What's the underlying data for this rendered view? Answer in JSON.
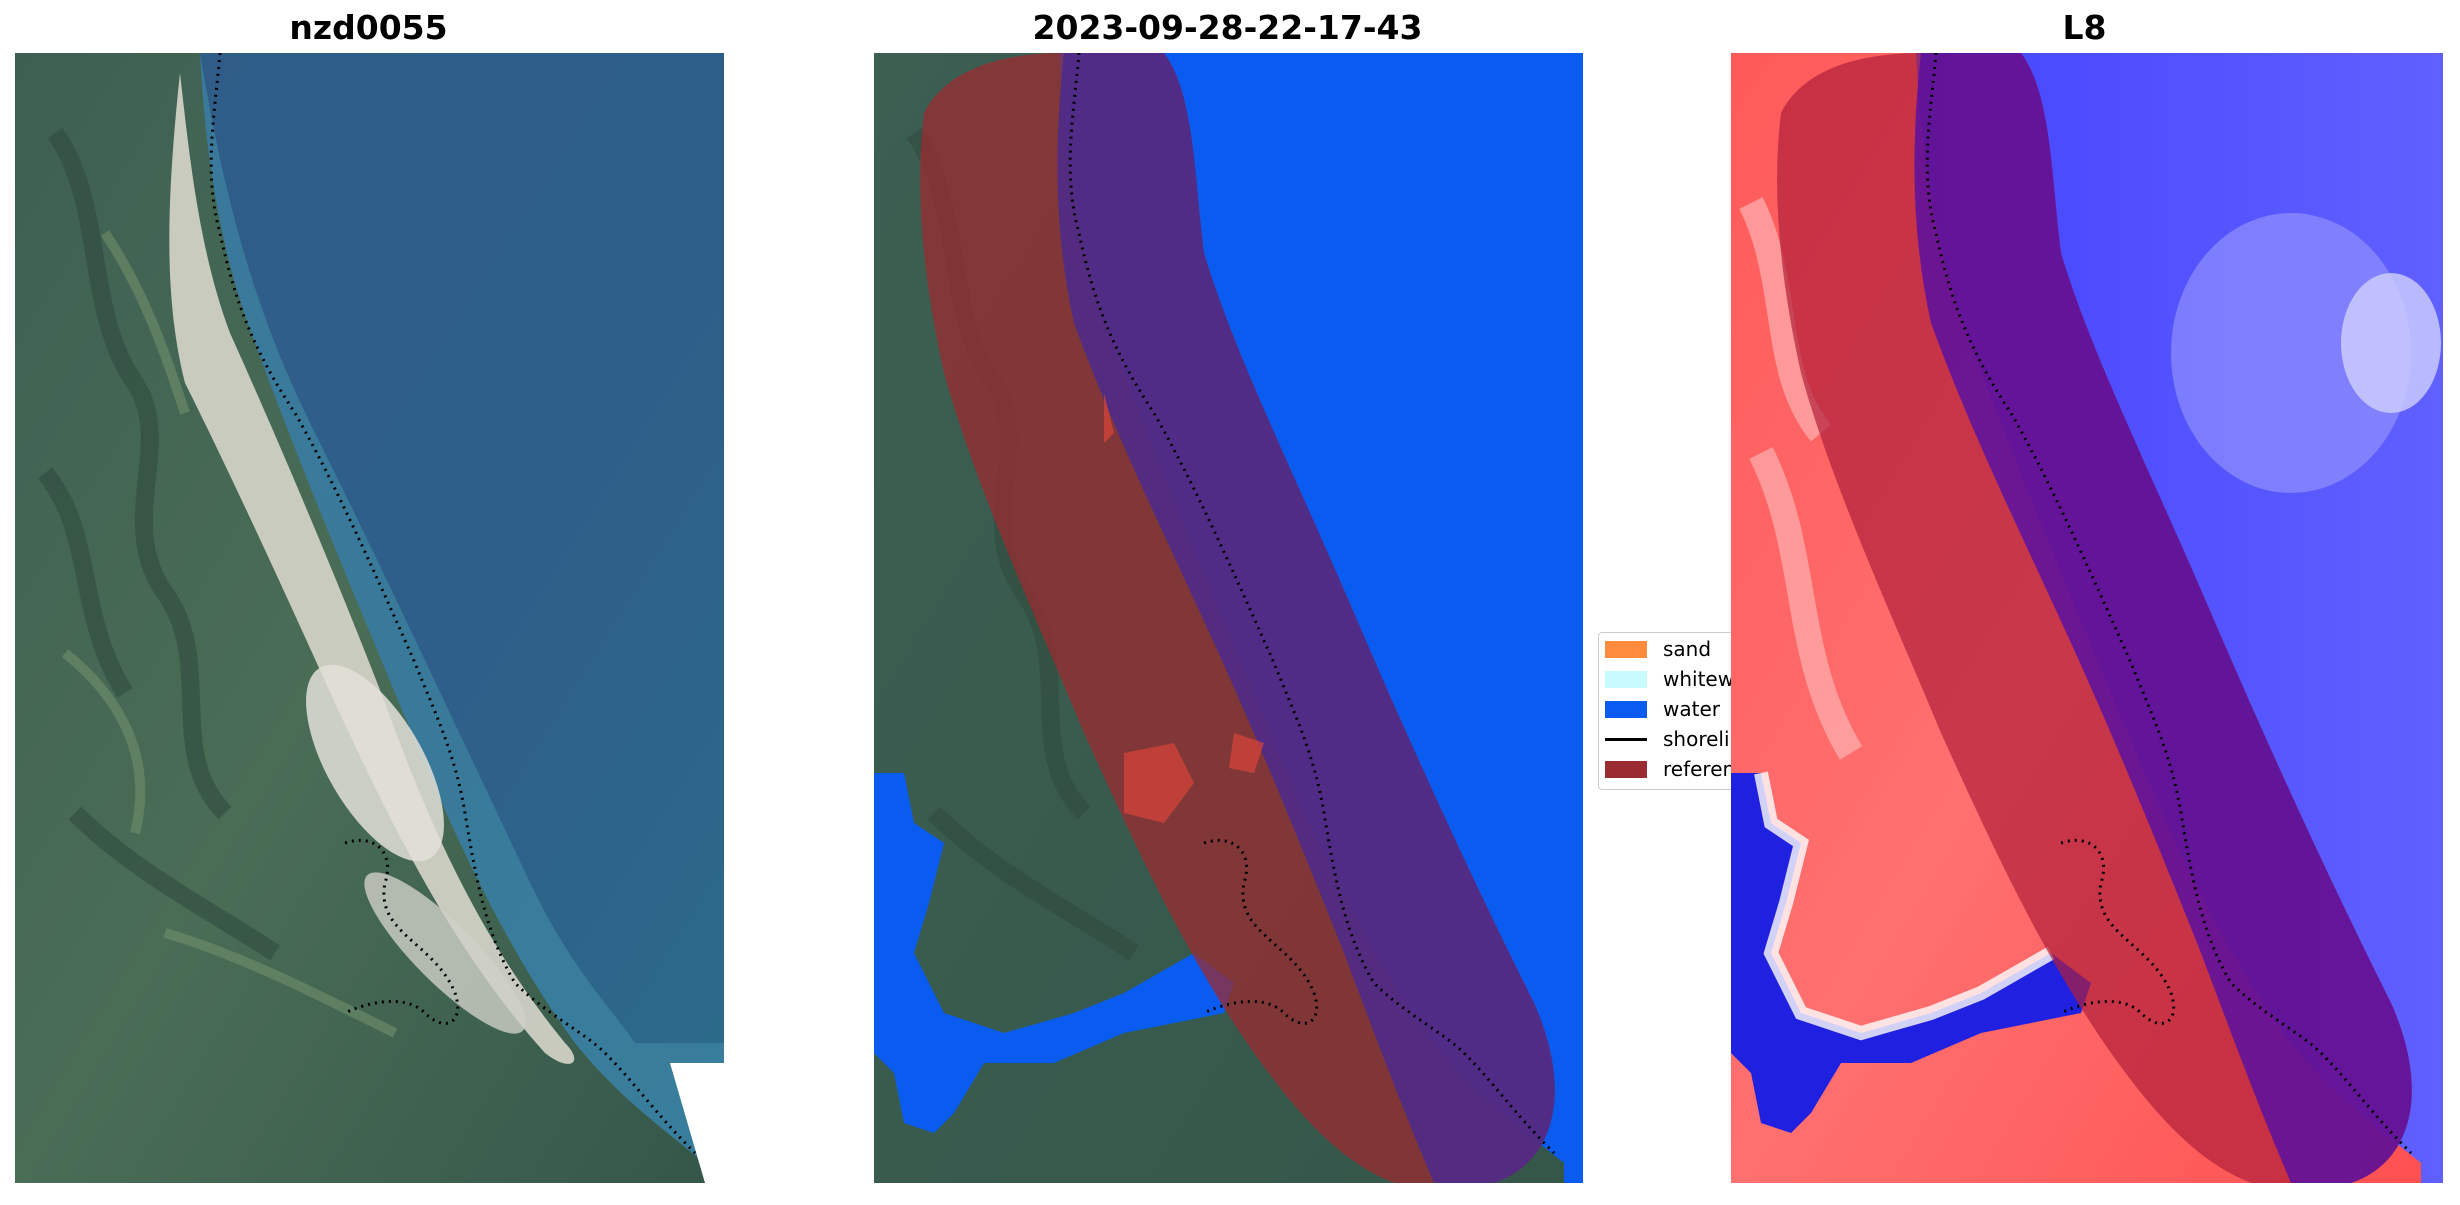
{
  "panels": {
    "left": {
      "title": "nzd0055"
    },
    "middle": {
      "title": "2023-09-28-22-17-43"
    },
    "right": {
      "title": "L8"
    }
  },
  "legend": {
    "items": [
      {
        "label": "sand",
        "color": "#ff8c3c",
        "kind": "patch"
      },
      {
        "label": "whitewater",
        "color": "#c8fbff",
        "kind": "patch"
      },
      {
        "label": "water",
        "color": "#0a5cf0",
        "kind": "patch"
      },
      {
        "label": "shoreline",
        "color": "#000000",
        "kind": "line"
      },
      {
        "label": "reference",
        "color": "#9a2b30",
        "kind": "patch"
      }
    ]
  }
}
